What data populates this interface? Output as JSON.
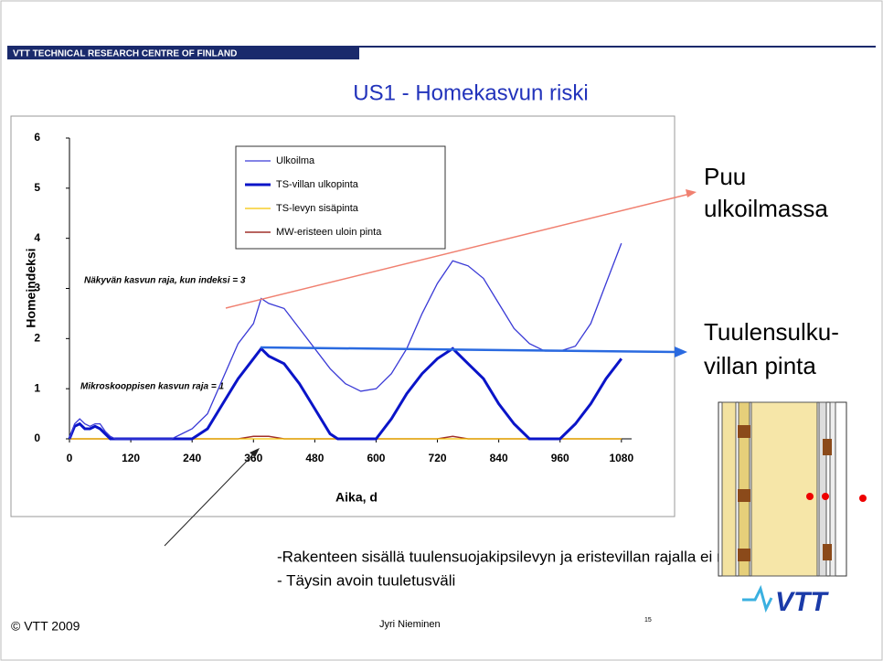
{
  "header": {
    "banner": "VTT TECHNICAL RESEARCH CENTRE OF FINLAND",
    "title": "US1 - Homekasvun riski"
  },
  "chart_data": {
    "type": "line",
    "xlabel": "Aika, d",
    "ylabel": "Homeindeksi",
    "x": [
      0,
      10,
      20,
      30,
      40,
      50,
      60,
      70,
      80,
      90,
      120,
      150,
      180,
      200,
      220,
      240,
      270,
      300,
      330,
      360,
      375,
      390,
      420,
      450,
      480,
      510,
      525,
      540,
      570,
      600,
      630,
      660,
      690,
      720,
      750,
      780,
      810,
      840,
      870,
      900,
      930,
      960,
      990,
      1020,
      1050,
      1080
    ],
    "series": [
      {
        "name": "Ulkoilma",
        "color": "#3a3ad6",
        "width": 1.3,
        "values": [
          0,
          0.3,
          0.4,
          0.3,
          0.25,
          0.3,
          0.3,
          0.15,
          0.05,
          0,
          0,
          0,
          0,
          0,
          0.1,
          0.2,
          0.5,
          1.2,
          1.9,
          2.3,
          2.8,
          2.7,
          2.6,
          2.2,
          1.8,
          1.4,
          1.25,
          1.1,
          0.95,
          1.0,
          1.3,
          1.8,
          2.5,
          3.1,
          3.55,
          3.45,
          3.2,
          2.7,
          2.2,
          1.9,
          1.75,
          1.75,
          1.85,
          2.3,
          3.1,
          3.9
        ]
      },
      {
        "name": "TS-villan ulkopinta",
        "color": "#0a14c8",
        "width": 3,
        "values": [
          0,
          0.25,
          0.3,
          0.2,
          0.2,
          0.25,
          0.2,
          0.1,
          0,
          0,
          0,
          0,
          0,
          0,
          0,
          0,
          0.2,
          0.7,
          1.2,
          1.6,
          1.8,
          1.65,
          1.5,
          1.1,
          0.6,
          0.1,
          0,
          0,
          0,
          0,
          0.4,
          0.9,
          1.3,
          1.6,
          1.8,
          1.5,
          1.2,
          0.7,
          0.3,
          0,
          0,
          0,
          0.3,
          0.7,
          1.2,
          1.6
        ]
      },
      {
        "name": "TS-levyn sisäpinta",
        "color": "#f5c400",
        "width": 1.3,
        "values": [
          0,
          0,
          0,
          0,
          0,
          0,
          0,
          0,
          0,
          0,
          0,
          0,
          0,
          0,
          0,
          0,
          0,
          0,
          0,
          0,
          0,
          0,
          0,
          0,
          0,
          0,
          0,
          0,
          0,
          0,
          0,
          0,
          0,
          0,
          0,
          0,
          0,
          0,
          0,
          0,
          0,
          0,
          0,
          0,
          0,
          0
        ]
      },
      {
        "name": "MW-eristeen uloin pinta",
        "color": "#a0302a",
        "width": 1.5,
        "values": [
          0,
          0,
          0,
          0,
          0,
          0,
          0,
          0,
          0,
          0,
          0,
          0,
          0,
          0,
          0,
          0,
          0,
          0,
          0,
          0.05,
          0.05,
          0.05,
          0,
          0,
          0,
          0,
          0,
          0,
          0,
          0,
          0,
          0,
          0,
          0,
          0.05,
          0,
          0,
          0,
          0,
          0,
          0,
          0,
          0,
          0,
          0,
          0
        ]
      }
    ],
    "xlim": [
      0,
      1100
    ],
    "xticks": [
      0,
      120,
      240,
      360,
      480,
      600,
      720,
      840,
      960,
      1080
    ],
    "ylim": [
      0,
      6
    ],
    "yticks": [
      0,
      1,
      2,
      3,
      4,
      5,
      6
    ],
    "annotations": [
      "Näkyvän kasvun raja, kun indeksi = 3",
      "Mikroskooppisen kasvun raja = 1"
    ]
  },
  "side_labels": [
    [
      "Puu",
      "ulkoilmassa"
    ],
    [
      "Tuulensulku-",
      "villan pinta"
    ]
  ],
  "notes": [
    "-Rakenteen sisällä tuulensuojakipsilevyn ja eristevillan rajalla ei riskiä",
    "- Täysin avoin tuuletusväli"
  ],
  "footer": {
    "copyright": "© VTT 2009",
    "author": "Jyri Nieminen",
    "page": "15",
    "logo": "VTT"
  }
}
